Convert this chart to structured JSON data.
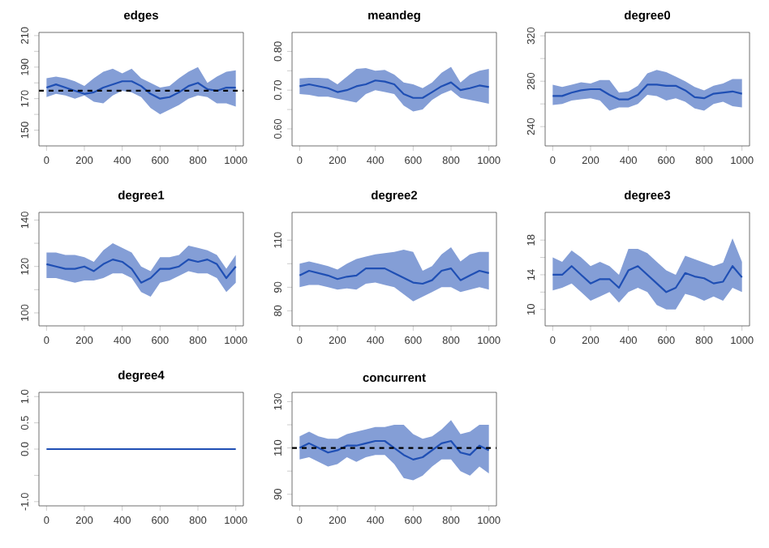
{
  "chart_data": [
    {
      "type": "line",
      "title": "edges",
      "x": [
        0,
        50,
        100,
        150,
        200,
        250,
        300,
        350,
        400,
        450,
        500,
        550,
        600,
        650,
        700,
        750,
        800,
        850,
        900,
        950,
        1000
      ],
      "xlim": [
        -40,
        1040
      ],
      "xticks": [
        0,
        200,
        400,
        600,
        800,
        1000
      ],
      "ylim": [
        140,
        212
      ],
      "yticks": [
        150,
        {
          "value": 160,
          "label": null
        },
        170,
        {
          "value": 180,
          "label": null
        },
        190,
        {
          "value": 200,
          "label": null
        },
        210
      ],
      "series": [
        {
          "color": "#1f4fb4",
          "values": [
            177,
            179,
            177,
            175,
            173,
            174,
            177,
            179,
            181,
            181,
            178,
            173,
            170,
            171,
            174,
            178,
            180,
            176,
            175,
            177,
            177
          ],
          "upper": [
            183,
            184,
            183,
            181,
            178,
            183,
            187,
            189,
            186,
            189,
            183,
            180,
            177,
            178,
            183,
            187,
            190,
            180,
            184,
            187,
            188
          ],
          "lower": [
            171,
            173,
            172,
            170,
            172,
            168,
            167,
            172,
            175,
            174,
            171,
            164,
            160,
            163,
            166,
            170,
            172,
            171,
            167,
            167,
            165
          ]
        }
      ],
      "ref_lines": [
        {
          "axis": "y",
          "value": 175,
          "color": "#000000",
          "line_style": "dashed"
        }
      ]
    },
    {
      "type": "line",
      "title": "meandeg",
      "x": [
        0,
        50,
        100,
        150,
        200,
        250,
        300,
        350,
        400,
        450,
        500,
        550,
        600,
        650,
        700,
        750,
        800,
        850,
        900,
        950,
        1000
      ],
      "xlim": [
        -40,
        1040
      ],
      "xticks": [
        0,
        200,
        400,
        600,
        800,
        1000
      ],
      "ylim": [
        0.556,
        0.849
      ],
      "yticks": [
        {
          "value": 0.6,
          "label": "0.60"
        },
        {
          "value": 0.65,
          "label": null
        },
        {
          "value": 0.7,
          "label": "0.70"
        },
        {
          "value": 0.75,
          "label": null
        },
        {
          "value": 0.8,
          "label": "0.80"
        }
      ],
      "series": [
        {
          "color": "#1f4fb4",
          "values": [
            0.71,
            0.715,
            0.71,
            0.705,
            0.695,
            0.7,
            0.71,
            0.715,
            0.725,
            0.722,
            0.715,
            0.69,
            0.68,
            0.68,
            0.695,
            0.71,
            0.72,
            0.7,
            0.705,
            0.712,
            0.708
          ],
          "upper": [
            0.73,
            0.732,
            0.732,
            0.73,
            0.715,
            0.735,
            0.755,
            0.757,
            0.75,
            0.752,
            0.74,
            0.72,
            0.715,
            0.705,
            0.72,
            0.745,
            0.76,
            0.72,
            0.74,
            0.75,
            0.755
          ],
          "lower": [
            0.69,
            0.688,
            0.683,
            0.683,
            0.678,
            0.673,
            0.668,
            0.69,
            0.7,
            0.695,
            0.69,
            0.66,
            0.645,
            0.65,
            0.675,
            0.69,
            0.7,
            0.68,
            0.675,
            0.67,
            0.665
          ]
        }
      ]
    },
    {
      "type": "line",
      "title": "degree0",
      "x": [
        0,
        50,
        100,
        150,
        200,
        250,
        300,
        350,
        400,
        450,
        500,
        550,
        600,
        650,
        700,
        750,
        800,
        850,
        900,
        950,
        1000
      ],
      "xlim": [
        -40,
        1040
      ],
      "xticks": [
        0,
        200,
        400,
        600,
        800,
        1000
      ],
      "ylim": [
        223,
        323
      ],
      "yticks": [
        240,
        {
          "value": 260,
          "label": null
        },
        280,
        {
          "value": 300,
          "label": null
        },
        320
      ],
      "series": [
        {
          "color": "#1f4fb4",
          "values": [
            267,
            267,
            270,
            272,
            273,
            273,
            268,
            264,
            264,
            268,
            277,
            277,
            276,
            276,
            272,
            266,
            265,
            269,
            270,
            271,
            269
          ],
          "upper": [
            277,
            275,
            277,
            279,
            278,
            281,
            281,
            270,
            271,
            276,
            287,
            290,
            288,
            284,
            280,
            275,
            272,
            276,
            278,
            282,
            282
          ],
          "lower": [
            259,
            260,
            263,
            264,
            265,
            263,
            254,
            257,
            257,
            260,
            268,
            267,
            263,
            265,
            262,
            256,
            254,
            260,
            262,
            258,
            257
          ]
        }
      ]
    },
    {
      "type": "line",
      "title": "degree1",
      "x": [
        0,
        50,
        100,
        150,
        200,
        250,
        300,
        350,
        400,
        450,
        500,
        550,
        600,
        650,
        700,
        750,
        800,
        850,
        900,
        950,
        1000
      ],
      "xlim": [
        -40,
        1040
      ],
      "xticks": [
        0,
        200,
        400,
        600,
        800,
        1000
      ],
      "ylim": [
        94.4,
        143.3
      ],
      "yticks": [
        100,
        {
          "value": 110,
          "label": null
        },
        120,
        {
          "value": 130,
          "label": null
        },
        140
      ],
      "series": [
        {
          "color": "#1f4fb4",
          "values": [
            121,
            120,
            119,
            119,
            120,
            118,
            121,
            123,
            122,
            119,
            113,
            115,
            119,
            119,
            120,
            123,
            122,
            123,
            121,
            115,
            120
          ],
          "upper": [
            126,
            126,
            125,
            125,
            124,
            122,
            127,
            130,
            128,
            126,
            120,
            118,
            124,
            124,
            125,
            129,
            128,
            127,
            125,
            119,
            125
          ],
          "lower": [
            115,
            115,
            114,
            113,
            114,
            114,
            115,
            117,
            117,
            115,
            109,
            107,
            113,
            114,
            116,
            118,
            117,
            117,
            115,
            109,
            113
          ]
        }
      ]
    },
    {
      "type": "line",
      "title": "degree2",
      "x": [
        0,
        50,
        100,
        150,
        200,
        250,
        300,
        350,
        400,
        450,
        500,
        550,
        600,
        650,
        700,
        750,
        800,
        850,
        900,
        950,
        1000
      ],
      "xlim": [
        -40,
        1040
      ],
      "xticks": [
        0,
        200,
        400,
        600,
        800,
        1000
      ],
      "ylim": [
        73.6,
        121.8
      ],
      "yticks": [
        80,
        90,
        {
          "value": 100,
          "label": null
        },
        110
      ],
      "series": [
        {
          "color": "#1f4fb4",
          "values": [
            95,
            97,
            96,
            95,
            93.5,
            94.5,
            95,
            98,
            98,
            98,
            96,
            94,
            92,
            91.5,
            93,
            97,
            98,
            93,
            95,
            97,
            96
          ],
          "upper": [
            100,
            101,
            100,
            99,
            97.5,
            100,
            102,
            103,
            104,
            104.5,
            105,
            106,
            105,
            97,
            99,
            104,
            107,
            101,
            104,
            105,
            105
          ],
          "lower": [
            90,
            91,
            91,
            90,
            89,
            89.5,
            89,
            91.5,
            92,
            91,
            90,
            87,
            84,
            86,
            88,
            90,
            90,
            88,
            89,
            90,
            89
          ]
        }
      ]
    },
    {
      "type": "line",
      "title": "degree3",
      "x": [
        0,
        50,
        100,
        150,
        200,
        250,
        300,
        350,
        400,
        450,
        500,
        550,
        600,
        650,
        700,
        750,
        800,
        850,
        900,
        950,
        1000
      ],
      "xlim": [
        -40,
        1040
      ],
      "xticks": [
        0,
        200,
        400,
        600,
        800,
        1000
      ],
      "ylim": [
        8.1,
        21.2
      ],
      "yticks": [
        10,
        {
          "value": 12,
          "label": null
        },
        14,
        {
          "value": 16,
          "label": null
        },
        18
      ],
      "series": [
        {
          "color": "#1f4fb4",
          "values": [
            14,
            14,
            15,
            14,
            13,
            13.5,
            13.5,
            12.5,
            14.5,
            15,
            14,
            13,
            12,
            12.5,
            14.2,
            13.8,
            13.6,
            13,
            13.2,
            15,
            13.7
          ],
          "upper": [
            16,
            15.5,
            16.8,
            16,
            15,
            15.5,
            15,
            14,
            17,
            17,
            16.5,
            15.5,
            14.5,
            14,
            16.2,
            15.8,
            15.4,
            15,
            15.4,
            18.2,
            15.5
          ],
          "lower": [
            12.2,
            12.5,
            13,
            12,
            11,
            11.5,
            12,
            10.8,
            12,
            12.5,
            12,
            10.5,
            10,
            10,
            11.8,
            11.5,
            11,
            11.5,
            11,
            12.5,
            12
          ]
        }
      ]
    },
    {
      "type": "line",
      "title": "degree4",
      "x": [
        0,
        50,
        100,
        150,
        200,
        250,
        300,
        350,
        400,
        450,
        500,
        550,
        600,
        650,
        700,
        750,
        800,
        850,
        900,
        950,
        1000
      ],
      "xlim": [
        -40,
        1040
      ],
      "xticks": [
        0,
        200,
        400,
        600,
        800,
        1000
      ],
      "ylim": [
        -1.08,
        1.08
      ],
      "yticks": [
        {
          "value": -1,
          "label": "-1.0"
        },
        {
          "value": -0.5,
          "label": null
        },
        {
          "value": 0,
          "label": "0.0"
        },
        {
          "value": 0.5,
          "label": "0.5"
        },
        {
          "value": 1,
          "label": "1.0"
        }
      ],
      "series": [
        {
          "color": "#1f4fb4",
          "values": [
            0,
            0,
            0,
            0,
            0,
            0,
            0,
            0,
            0,
            0,
            0,
            0,
            0,
            0,
            0,
            0,
            0,
            0,
            0,
            0,
            0
          ]
        }
      ]
    },
    {
      "type": "line",
      "title": "concurrent",
      "x": [
        0,
        50,
        100,
        150,
        200,
        250,
        300,
        350,
        400,
        450,
        500,
        550,
        600,
        650,
        700,
        750,
        800,
        850,
        900,
        950,
        1000
      ],
      "xlim": [
        -40,
        1040
      ],
      "xticks": [
        0,
        200,
        400,
        600,
        800,
        1000
      ],
      "ylim": [
        85,
        134
      ],
      "yticks": [
        90,
        {
          "value": 100,
          "label": null
        },
        110,
        {
          "value": 120,
          "label": null
        },
        130
      ],
      "series": [
        {
          "color": "#1f4fb4",
          "values": [
            110,
            112,
            110,
            108,
            109,
            111,
            111,
            112,
            113,
            113,
            110,
            107,
            105,
            106,
            109,
            112,
            113,
            108,
            107,
            111,
            109
          ],
          "upper": [
            115,
            117,
            115,
            114,
            114,
            116,
            117,
            118,
            119,
            119,
            120,
            120,
            116,
            114,
            115,
            118,
            122,
            116,
            117,
            120,
            120
          ],
          "lower": [
            105,
            106,
            104,
            102,
            103,
            106,
            104,
            106,
            107,
            107,
            103,
            97,
            96,
            98,
            102,
            105,
            105,
            100,
            98,
            102,
            99
          ]
        }
      ],
      "ref_lines": [
        {
          "axis": "y",
          "value": 110,
          "color": "#000000",
          "line_style": "dashed"
        }
      ]
    }
  ]
}
